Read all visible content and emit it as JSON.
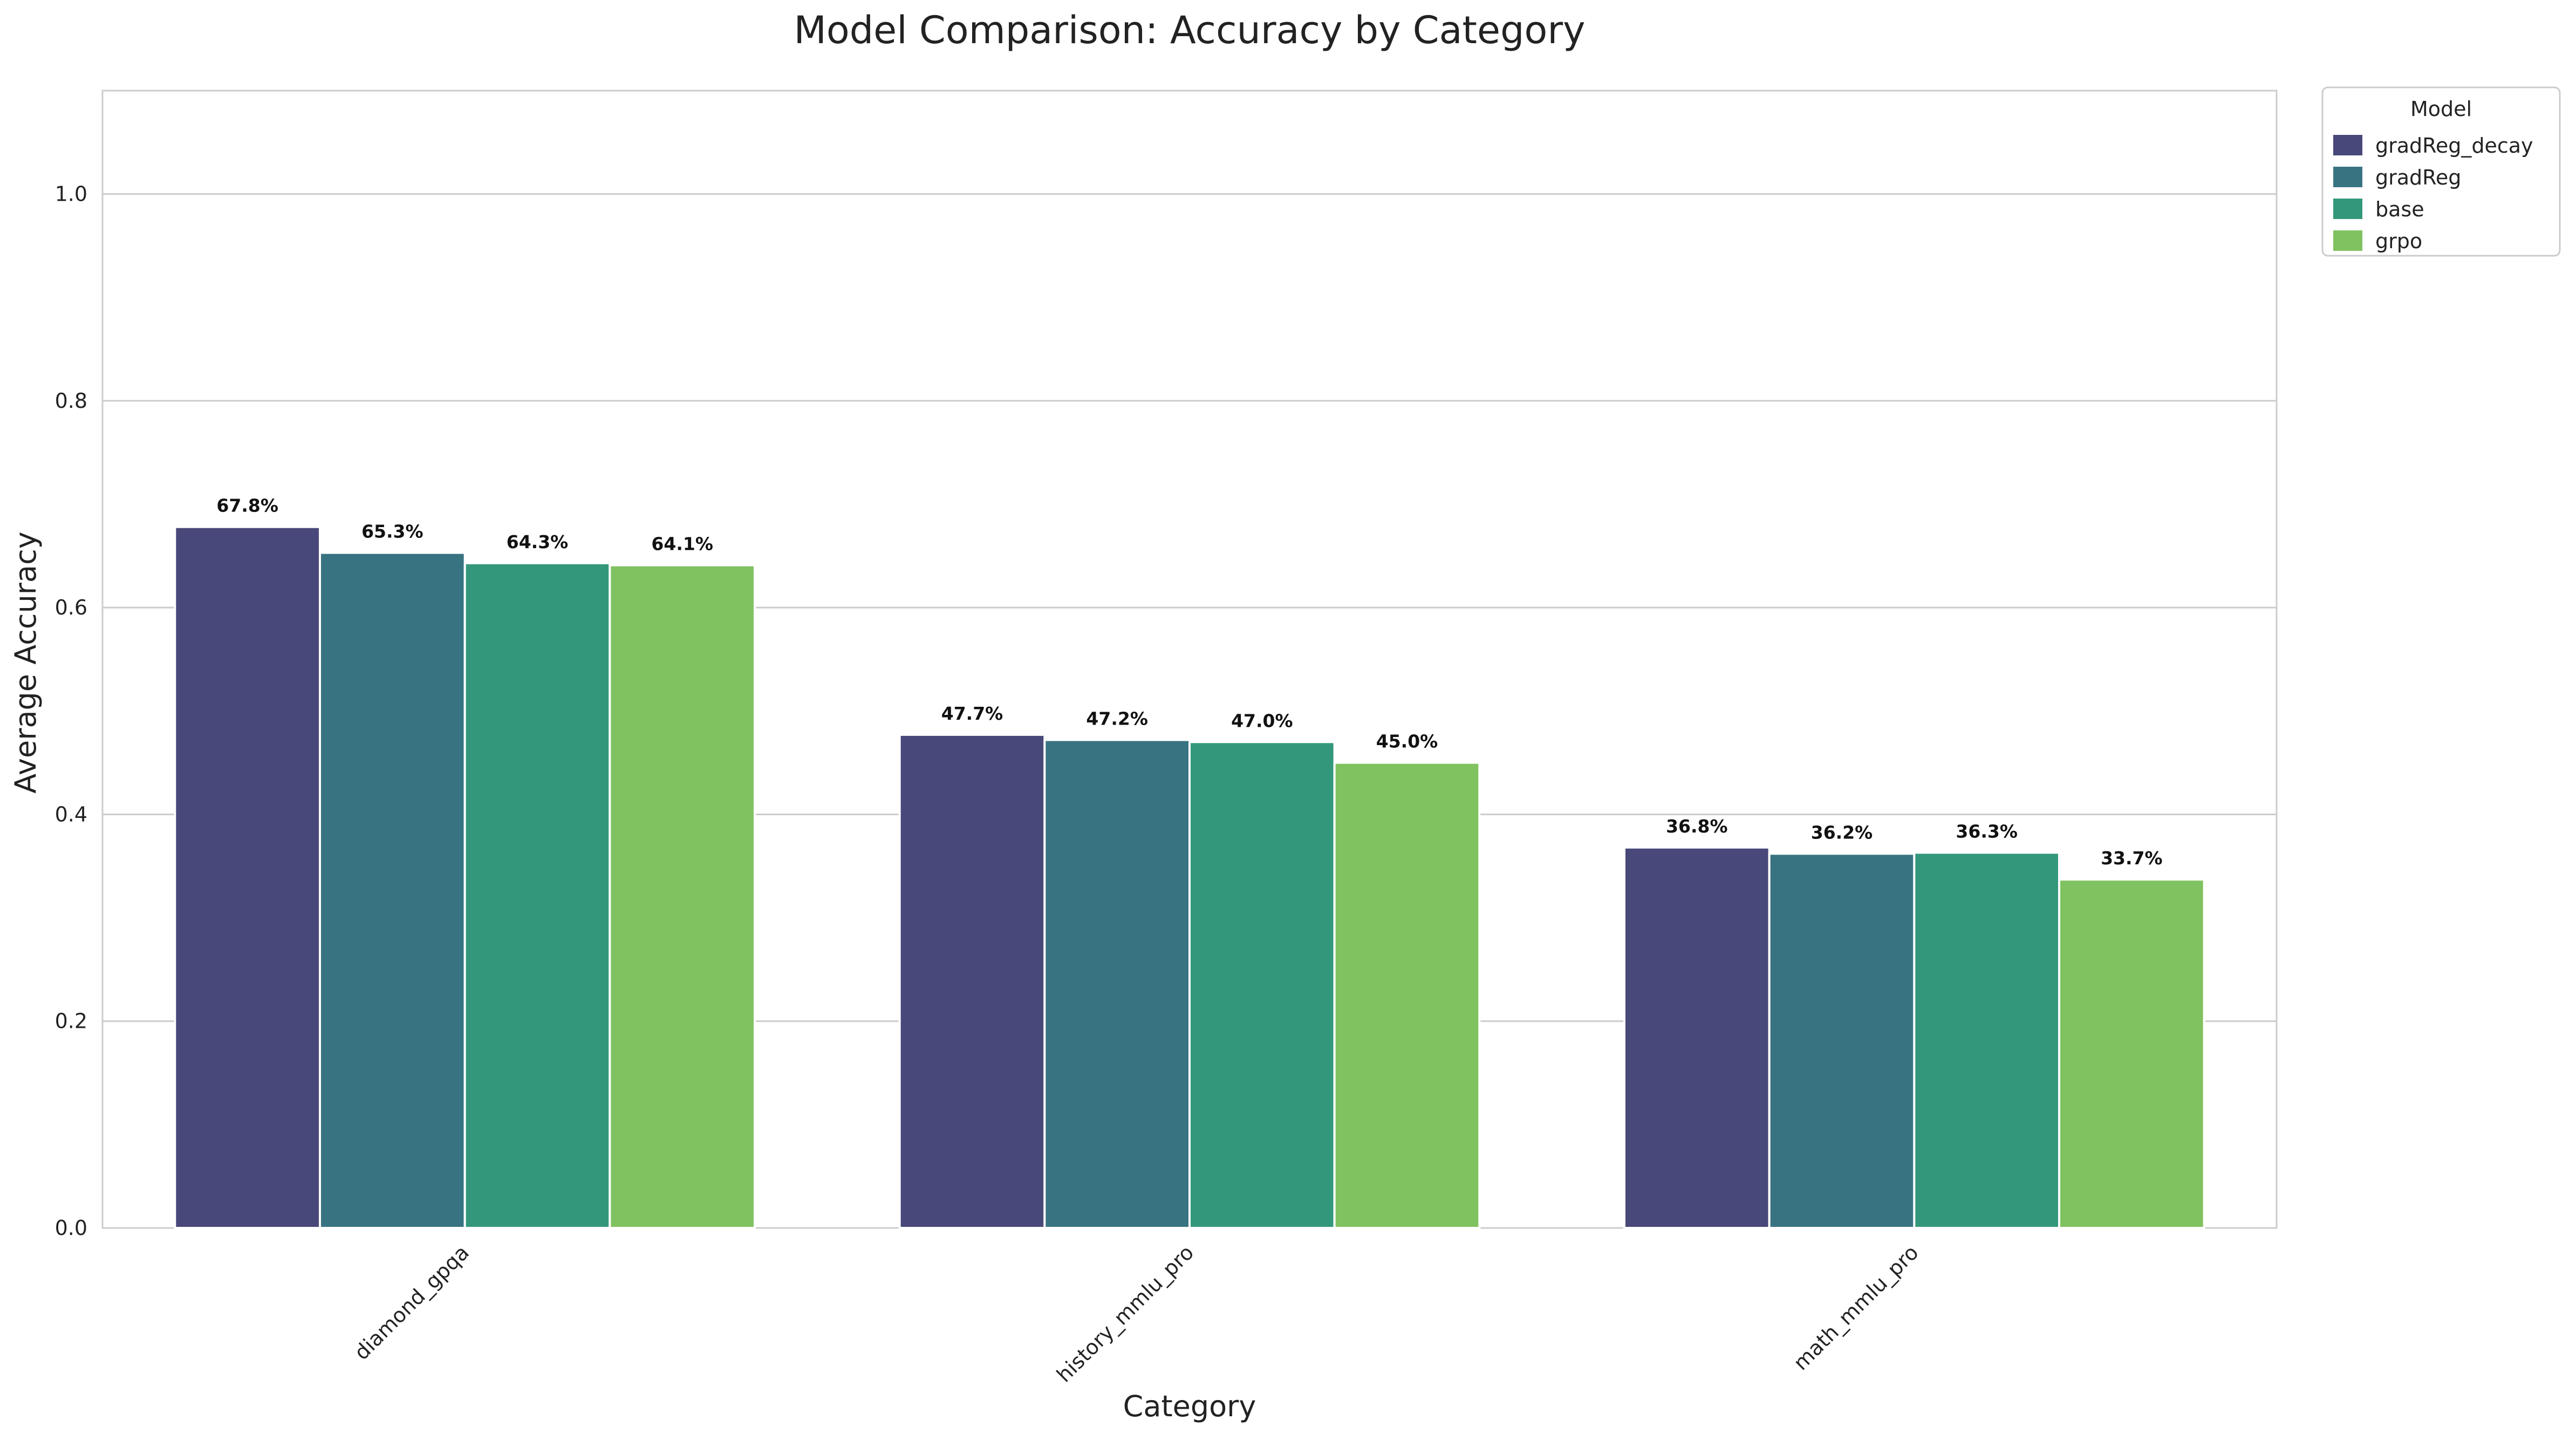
{
  "chart_data": {
    "type": "bar",
    "title": "Model Comparison: Accuracy by Category",
    "xlabel": "Category",
    "ylabel": "Average Accuracy",
    "categories": [
      "diamond_gpqa",
      "history_mmlu_pro",
      "math_mmlu_pro"
    ],
    "series": [
      {
        "name": "gradReg_decay",
        "color": "#48487a",
        "values": [
          0.678,
          0.477,
          0.368
        ],
        "labels": [
          "67.8%",
          "47.7%",
          "36.8%"
        ]
      },
      {
        "name": "gradReg",
        "color": "#387382",
        "values": [
          0.653,
          0.472,
          0.362
        ],
        "labels": [
          "65.3%",
          "47.2%",
          "36.2%"
        ]
      },
      {
        "name": "base",
        "color": "#33987b",
        "values": [
          0.643,
          0.47,
          0.363
        ],
        "labels": [
          "64.3%",
          "47.0%",
          "36.3%"
        ]
      },
      {
        "name": "grpo",
        "color": "#80c260",
        "values": [
          0.641,
          0.45,
          0.337
        ],
        "labels": [
          "64.1%",
          "45.0%",
          "33.7%"
        ]
      }
    ],
    "ylim": [
      0,
      1.1
    ],
    "yticks": [
      0.0,
      0.2,
      0.4,
      0.6,
      0.8,
      1.0
    ],
    "ytick_labels": [
      "0.0",
      "0.2",
      "0.4",
      "0.6",
      "0.8",
      "1.0"
    ],
    "grid": true,
    "legend": {
      "title": "Model",
      "placement": "outside-top-right"
    }
  }
}
